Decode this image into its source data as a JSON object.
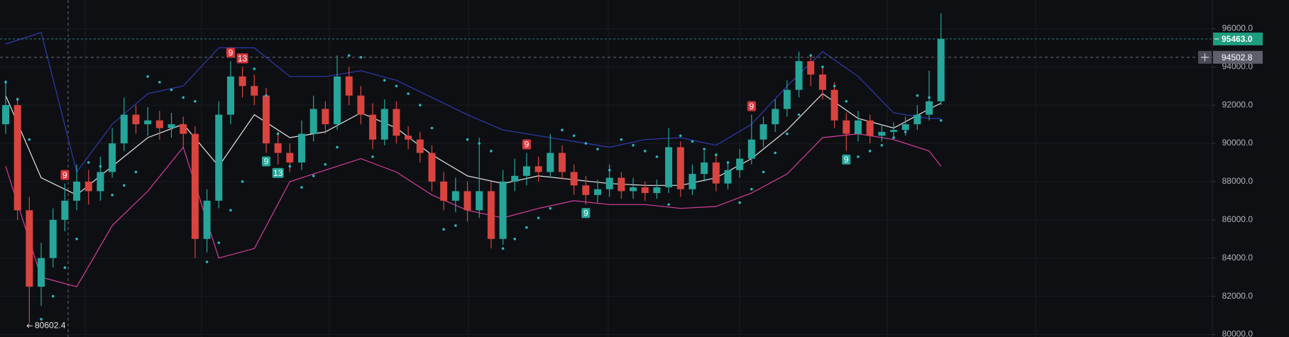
{
  "chart_data": {
    "type": "candlestick",
    "ylim": [
      79870,
      97500
    ],
    "yticks": [
      {
        "value": 80000,
        "label": "80000.0"
      },
      {
        "value": 82000,
        "label": "82000.0"
      },
      {
        "value": 84000,
        "label": "84000.0"
      },
      {
        "value": 86000,
        "label": "86000.0"
      },
      {
        "value": 88000,
        "label": "88000.0"
      },
      {
        "value": 90000,
        "label": "90000.0"
      },
      {
        "value": 92000,
        "label": "92000.0"
      },
      {
        "value": 94000,
        "label": "94000.0"
      },
      {
        "value": 96000,
        "label": "96000.0"
      }
    ],
    "grid": true,
    "up_color": "#26a69a",
    "down_color": "#d9443f",
    "candles": [
      [
        91000,
        93300,
        90500,
        92000
      ],
      [
        92000,
        92400,
        86000,
        86500
      ],
      [
        86500,
        87200,
        80602.4,
        82500
      ],
      [
        82500,
        84800,
        81500,
        84000
      ],
      [
        84000,
        86600,
        83500,
        86000
      ],
      [
        86000,
        87900,
        85400,
        87000
      ],
      [
        87000,
        88900,
        86500,
        88000
      ],
      [
        88000,
        88600,
        86800,
        87500
      ],
      [
        87500,
        89300,
        87000,
        88500
      ],
      [
        88500,
        90800,
        88200,
        90000
      ],
      [
        90000,
        92400,
        89600,
        91500
      ],
      [
        91500,
        92000,
        90500,
        91000
      ],
      [
        91000,
        91900,
        90400,
        91200
      ],
      [
        91200,
        91700,
        90200,
        90800
      ],
      [
        90800,
        91600,
        90300,
        91000
      ],
      [
        91000,
        91400,
        89800,
        90500
      ],
      [
        90500,
        90900,
        84000,
        85000
      ],
      [
        85000,
        87600,
        84300,
        87000
      ],
      [
        87000,
        92200,
        86600,
        91500
      ],
      [
        91500,
        94300,
        91000,
        93500
      ],
      [
        93500,
        94000,
        92400,
        93000
      ],
      [
        93000,
        93600,
        92000,
        92500
      ],
      [
        92500,
        92900,
        89500,
        90000
      ],
      [
        90000,
        90600,
        88900,
        89500
      ],
      [
        89500,
        90000,
        88500,
        89000
      ],
      [
        89000,
        91200,
        88600,
        90500
      ],
      [
        90500,
        92500,
        90100,
        91800
      ],
      [
        91800,
        92200,
        90500,
        91000
      ],
      [
        91000,
        94600,
        90700,
        93500
      ],
      [
        93500,
        94000,
        92000,
        92500
      ],
      [
        92500,
        93000,
        91000,
        91500
      ],
      [
        91500,
        92100,
        89700,
        90200
      ],
      [
        90200,
        92300,
        89900,
        91800
      ],
      [
        91800,
        92200,
        90000,
        90400
      ],
      [
        90400,
        90900,
        89700,
        90200
      ],
      [
        90200,
        90600,
        89000,
        89500
      ],
      [
        89500,
        89900,
        87500,
        88000
      ],
      [
        88000,
        88500,
        86500,
        87000
      ],
      [
        87000,
        88200,
        86400,
        87500
      ],
      [
        87500,
        88000,
        85900,
        86500
      ],
      [
        86500,
        90300,
        86100,
        87500
      ],
      [
        87500,
        88000,
        84500,
        85000
      ],
      [
        85000,
        88600,
        84700,
        88000
      ],
      [
        88000,
        89200,
        87500,
        88300
      ],
      [
        88300,
        89500,
        87800,
        88800
      ],
      [
        88800,
        89300,
        88000,
        88500
      ],
      [
        88500,
        90500,
        88200,
        89500
      ],
      [
        89500,
        89900,
        88100,
        88500
      ],
      [
        88500,
        88900,
        87300,
        87800
      ],
      [
        87800,
        88300,
        86800,
        87300
      ],
      [
        87300,
        88100,
        86900,
        87600
      ],
      [
        87600,
        88900,
        87200,
        88200
      ],
      [
        88200,
        88500,
        87100,
        87500
      ],
      [
        87500,
        88200,
        87100,
        87700
      ],
      [
        87700,
        88000,
        87000,
        87400
      ],
      [
        87400,
        88100,
        87100,
        87700
      ],
      [
        87700,
        90800,
        87400,
        89800
      ],
      [
        89800,
        90100,
        87200,
        87600
      ],
      [
        87600,
        88900,
        87300,
        88400
      ],
      [
        88400,
        89600,
        88000,
        89000
      ],
      [
        89000,
        89400,
        87500,
        87900
      ],
      [
        87900,
        89000,
        87600,
        88600
      ],
      [
        88600,
        89700,
        88200,
        89200
      ],
      [
        89200,
        91500,
        88900,
        90200
      ],
      [
        90200,
        91400,
        89800,
        91000
      ],
      [
        91000,
        92300,
        90600,
        91800
      ],
      [
        91800,
        93300,
        91400,
        92800
      ],
      [
        92800,
        94800,
        92400,
        94300
      ],
      [
        94300,
        94600,
        93000,
        93600
      ],
      [
        93600,
        94000,
        92300,
        92800
      ],
      [
        92800,
        93200,
        90800,
        91200
      ],
      [
        91200,
        91600,
        89600,
        90500
      ],
      [
        90500,
        91700,
        90100,
        91200
      ],
      [
        91200,
        91500,
        90000,
        90400
      ],
      [
        90400,
        91000,
        90100,
        90600
      ],
      [
        90600,
        91100,
        90300,
        90700
      ],
      [
        90700,
        91400,
        90400,
        91000
      ],
      [
        91000,
        92000,
        90700,
        91500
      ],
      [
        91500,
        93800,
        91200,
        92200
      ],
      [
        92200,
        96800,
        92000,
        95463
      ]
    ],
    "bands": [
      {
        "color": "#2f3bb0",
        "x": [
          0,
          3,
          6,
          9,
          12,
          15,
          18,
          21,
          24,
          27,
          30,
          33,
          36,
          39,
          42,
          45,
          48,
          51,
          54,
          57,
          60,
          63,
          66,
          69,
          72,
          75,
          78,
          79
        ],
        "values": [
          95200,
          95800,
          88500,
          91000,
          92600,
          93000,
          95000,
          95000,
          93500,
          93500,
          93800,
          93300,
          92400,
          91500,
          90700,
          90400,
          90100,
          89800,
          90200,
          90300,
          89900,
          91000,
          93000,
          94800,
          93500,
          91600,
          91300,
          91300
        ]
      },
      {
        "color": "#e6e6e6",
        "x": [
          0,
          3,
          6,
          9,
          12,
          15,
          18,
          21,
          24,
          27,
          30,
          33,
          36,
          39,
          42,
          45,
          48,
          51,
          54,
          57,
          60,
          63,
          66,
          69,
          72,
          75,
          78,
          79
        ],
        "values": [
          92500,
          88200,
          87300,
          88800,
          90300,
          91000,
          88800,
          91500,
          90300,
          90600,
          91600,
          90800,
          89400,
          88300,
          87900,
          88300,
          88100,
          87900,
          87800,
          87800,
          88200,
          89200,
          90700,
          92600,
          91300,
          90800,
          91800,
          92100
        ]
      },
      {
        "color": "#d63f9e",
        "x": [
          0,
          3,
          6,
          9,
          12,
          15,
          18,
          21,
          24,
          27,
          30,
          33,
          36,
          39,
          42,
          45,
          48,
          51,
          54,
          57,
          60,
          63,
          66,
          69,
          72,
          75,
          78,
          79
        ],
        "values": [
          88800,
          83000,
          82500,
          85700,
          87500,
          89800,
          84000,
          84500,
          88000,
          88600,
          89200,
          88500,
          87300,
          86500,
          86100,
          86600,
          87000,
          86800,
          86800,
          86600,
          86700,
          87400,
          88400,
          90300,
          90500,
          90200,
          89600,
          88800
        ]
      }
    ],
    "sar": {
      "color": "#2ab8c0",
      "values": [
        93200,
        92300,
        90200,
        80800,
        82000,
        83500,
        85000,
        89000,
        88800,
        87300,
        87800,
        88500,
        93500,
        93200,
        92800,
        92400,
        92200,
        83800,
        84800,
        86500,
        88000,
        93900,
        92500,
        90500,
        88800,
        87700,
        88300,
        88900,
        89800,
        94600,
        94500,
        89300,
        93300,
        93000,
        92600,
        92000,
        90800,
        85500,
        85700,
        90200,
        90000,
        89600,
        84500,
        85000,
        85600,
        86100,
        86600,
        90700,
        90400,
        90000,
        89700,
        88600,
        90200,
        89900,
        89600,
        89300,
        86800,
        90400,
        90100,
        89700,
        89400,
        89000,
        86900,
        87600,
        88500,
        89500,
        90500,
        91500,
        94600,
        94000,
        93000,
        92200,
        89300,
        89600,
        89900,
        90300,
        90600,
        92500,
        92400,
        91200
      ]
    },
    "td_counts": [
      {
        "index": 5,
        "count": 9,
        "position": "above",
        "color": "#d9363e"
      },
      {
        "index": 19,
        "count": 9,
        "position": "above",
        "color": "#d9363e"
      },
      {
        "index": 20,
        "count": 13,
        "position": "above",
        "color": "#d9363e"
      },
      {
        "index": 22,
        "count": 9,
        "position": "below",
        "color": "#26a69a"
      },
      {
        "index": 23,
        "count": 13,
        "position": "below",
        "color": "#26a69a"
      },
      {
        "index": 44,
        "count": 9,
        "position": "above",
        "color": "#d9363e"
      },
      {
        "index": 49,
        "count": 9,
        "position": "below",
        "color": "#26a69a"
      },
      {
        "index": 63,
        "count": 9,
        "position": "above",
        "color": "#d9363e"
      },
      {
        "index": 71,
        "count": 9,
        "position": "below",
        "color": "#26a69a"
      }
    ],
    "last_price": {
      "value": 95463,
      "label": "95463.0"
    },
    "crosshair_price": 94502.8,
    "low": 80602.4
  }
}
